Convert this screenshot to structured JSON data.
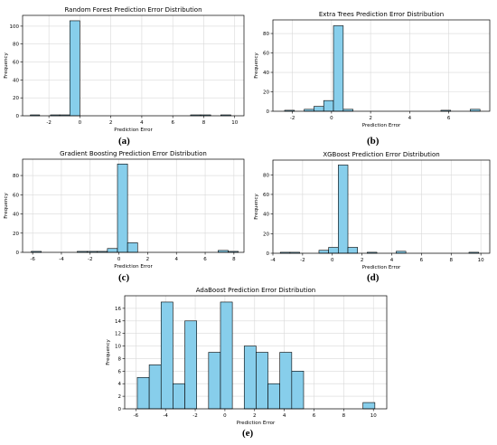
{
  "bar_color": "#87CEEB",
  "edge_color": "#000000",
  "grid_color": "#d9d9d9",
  "chart_data": [
    {
      "type": "bar",
      "title": "Random Forest Prediction Error Distribution",
      "xlabel": "Prediction Error",
      "ylabel": "Frequency",
      "xlim": [
        -3.7,
        10.6
      ],
      "ylim": [
        0,
        112
      ],
      "xticks": [
        -2,
        0,
        2,
        4,
        6,
        8,
        10
      ],
      "yticks": [
        0,
        20,
        40,
        60,
        80,
        100
      ],
      "grid": true,
      "bins": [
        {
          "x0": -3.2,
          "x1": -2.6,
          "value": 1
        },
        {
          "x0": -1.9,
          "x1": -1.3,
          "value": 1
        },
        {
          "x0": -1.3,
          "x1": -0.65,
          "value": 1
        },
        {
          "x0": -0.65,
          "x1": 0.0,
          "value": 106
        },
        {
          "x0": 7.15,
          "x1": 7.8,
          "value": 1
        },
        {
          "x0": 7.8,
          "x1": 8.45,
          "value": 1
        },
        {
          "x0": 9.1,
          "x1": 9.75,
          "value": 1
        }
      ],
      "panel_label": "(a)"
    },
    {
      "type": "bar",
      "title": "Extra Trees Prediction Error Distribution",
      "xlabel": "Prediction Error",
      "ylabel": "Frequency",
      "xlim": [
        -3.0,
        8.1
      ],
      "ylim": [
        0,
        94
      ],
      "xticks": [
        -2,
        0,
        2,
        4,
        6
      ],
      "yticks": [
        0,
        20,
        40,
        60,
        80
      ],
      "grid": true,
      "bins": [
        {
          "x0": -2.4,
          "x1": -1.9,
          "value": 1
        },
        {
          "x0": -1.4,
          "x1": -0.9,
          "value": 2
        },
        {
          "x0": -0.9,
          "x1": -0.4,
          "value": 5
        },
        {
          "x0": -0.4,
          "x1": 0.1,
          "value": 11
        },
        {
          "x0": 0.1,
          "x1": 0.6,
          "value": 88
        },
        {
          "x0": 0.6,
          "x1": 1.1,
          "value": 2
        },
        {
          "x0": 5.6,
          "x1": 6.1,
          "value": 1
        },
        {
          "x0": 7.1,
          "x1": 7.6,
          "value": 2
        }
      ],
      "panel_label": "(b)"
    },
    {
      "type": "bar",
      "title": "Gradient Boosting Prediction Error Distribution",
      "xlabel": "Prediction Error",
      "ylabel": "Frequency",
      "xlim": [
        -6.7,
        8.7
      ],
      "ylim": [
        0,
        97
      ],
      "xticks": [
        -6,
        -4,
        -2,
        0,
        2,
        4,
        6,
        8
      ],
      "yticks": [
        0,
        20,
        40,
        60,
        80
      ],
      "grid": true,
      "bins": [
        {
          "x0": -6.1,
          "x1": -5.4,
          "value": 1
        },
        {
          "x0": -2.9,
          "x1": -2.2,
          "value": 1
        },
        {
          "x0": -2.2,
          "x1": -1.5,
          "value": 1
        },
        {
          "x0": -1.5,
          "x1": -0.8,
          "value": 1
        },
        {
          "x0": -0.8,
          "x1": -0.1,
          "value": 4
        },
        {
          "x0": -0.1,
          "x1": 0.6,
          "value": 92
        },
        {
          "x0": 0.6,
          "x1": 1.3,
          "value": 10
        },
        {
          "x0": 6.9,
          "x1": 7.6,
          "value": 2
        },
        {
          "x0": 7.6,
          "x1": 8.3,
          "value": 1
        }
      ],
      "panel_label": "(c)"
    },
    {
      "type": "bar",
      "title": "XGBoost Prediction Error Distribution",
      "xlabel": "Prediction Error",
      "ylabel": "Frequency",
      "xlim": [
        -4.0,
        10.6
      ],
      "ylim": [
        0,
        95
      ],
      "xticks": [
        -4,
        -2,
        0,
        2,
        4,
        6,
        8,
        10
      ],
      "yticks": [
        0,
        20,
        40,
        60,
        80
      ],
      "grid": true,
      "bins": [
        {
          "x0": -3.5,
          "x1": -2.85,
          "value": 1
        },
        {
          "x0": -2.85,
          "x1": -2.2,
          "value": 1
        },
        {
          "x0": -0.9,
          "x1": -0.25,
          "value": 3
        },
        {
          "x0": -0.25,
          "x1": 0.4,
          "value": 6
        },
        {
          "x0": 0.4,
          "x1": 1.05,
          "value": 90
        },
        {
          "x0": 1.05,
          "x1": 1.7,
          "value": 6
        },
        {
          "x0": 2.35,
          "x1": 3.0,
          "value": 1
        },
        {
          "x0": 4.3,
          "x1": 4.95,
          "value": 2
        },
        {
          "x0": 9.2,
          "x1": 9.85,
          "value": 1
        }
      ],
      "panel_label": "(d)"
    },
    {
      "type": "bar",
      "title": "AdaBoost Prediction Error Distribution",
      "xlabel": "Prediction Error",
      "ylabel": "Frequency",
      "xlim": [
        -6.75,
        10.9
      ],
      "ylim": [
        0,
        18
      ],
      "xticks": [
        -6,
        -4,
        -2,
        0,
        2,
        4,
        6,
        8,
        10
      ],
      "yticks": [
        0,
        2,
        4,
        6,
        8,
        10,
        12,
        14,
        16
      ],
      "grid": true,
      "bins": [
        {
          "x0": -5.9,
          "x1": -5.1,
          "value": 5
        },
        {
          "x0": -5.1,
          "x1": -4.3,
          "value": 7
        },
        {
          "x0": -4.3,
          "x1": -3.5,
          "value": 17
        },
        {
          "x0": -3.5,
          "x1": -2.7,
          "value": 4
        },
        {
          "x0": -2.7,
          "x1": -1.9,
          "value": 14
        },
        {
          "x0": -1.1,
          "x1": -0.3,
          "value": 9
        },
        {
          "x0": -0.3,
          "x1": 0.5,
          "value": 17
        },
        {
          "x0": 1.3,
          "x1": 2.1,
          "value": 10
        },
        {
          "x0": 2.1,
          "x1": 2.9,
          "value": 9
        },
        {
          "x0": 2.9,
          "x1": 3.7,
          "value": 4
        },
        {
          "x0": 3.7,
          "x1": 4.5,
          "value": 9
        },
        {
          "x0": 4.5,
          "x1": 5.3,
          "value": 6
        },
        {
          "x0": 9.3,
          "x1": 10.1,
          "value": 1
        }
      ],
      "panel_label": "(e)"
    }
  ]
}
